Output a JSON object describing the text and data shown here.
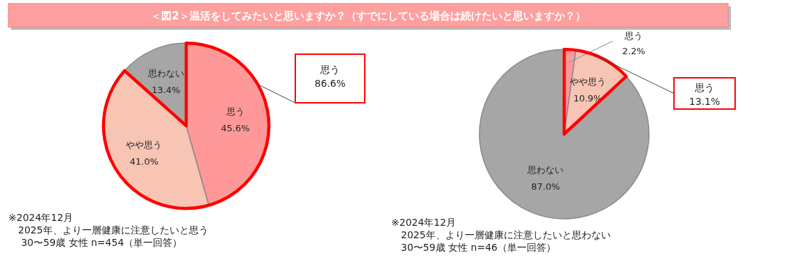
{
  "chart_data": [
    {
      "type": "pie",
      "title": "＜図2＞温活をしてみたいと思いますか？（すでにしている場合は続けたいと思いますか？）",
      "categories": [
        "思う",
        "やや思う",
        "思わない"
      ],
      "values": [
        45.6,
        41.0,
        13.4
      ],
      "value_labels": [
        "45.6%",
        "41.0%",
        "13.4%"
      ],
      "colors": [
        "#ff9999",
        "#f8c4b4",
        "#a6a6a6"
      ],
      "annotations": [
        "思う\n86.6%",
        "※2024年12月\n　2025年、より一層健康に注意したいと思う\n　 30〜59歳 女性 n=454（単一回答）"
      ]
    },
    {
      "type": "pie",
      "categories": [
        "思う",
        "やや思う",
        "思わない"
      ],
      "values": [
        2.2,
        10.9,
        87.0
      ],
      "value_labels": [
        "2.2%",
        "10.9%",
        "87.0%"
      ],
      "colors": [
        "#ff9999",
        "#f8c4b4",
        "#a6a6a6"
      ],
      "annotations": [
        "思う\n13.1%",
        "※2024年12月\n　2025年、より一層健康に注意したいと思わない\n　30〜59歳 女性 n=46（単一回答）"
      ]
    }
  ]
}
